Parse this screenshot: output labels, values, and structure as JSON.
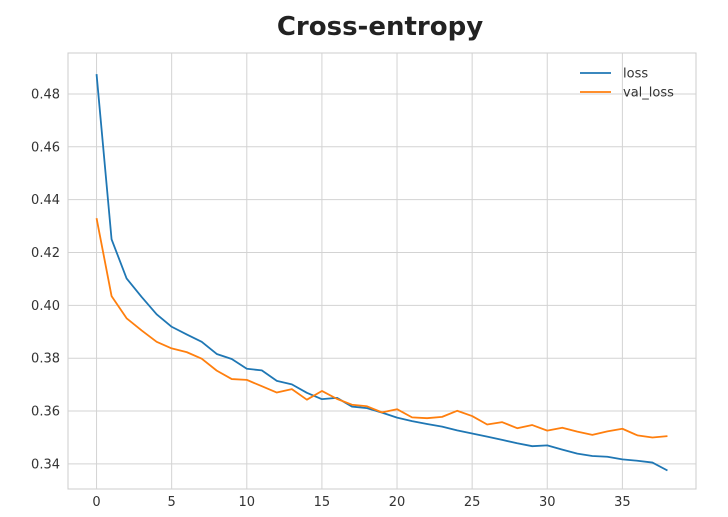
{
  "chart_data": {
    "type": "line",
    "title": "Cross-entropy",
    "xlabel": "",
    "ylabel": "",
    "xlim": [
      -1.9,
      39.9
    ],
    "ylim": [
      0.3305,
      0.4955
    ],
    "x_ticks": [
      0,
      5,
      10,
      15,
      20,
      25,
      30,
      35
    ],
    "y_ticks": [
      0.34,
      0.36,
      0.38,
      0.4,
      0.42,
      0.44,
      0.46,
      0.48
    ],
    "y_tick_labels": [
      "0.34",
      "0.36",
      "0.38",
      "0.40",
      "0.42",
      "0.44",
      "0.46",
      "0.48"
    ],
    "grid": true,
    "legend_position": "top-right",
    "x": [
      0,
      1,
      2,
      3,
      4,
      5,
      6,
      7,
      8,
      9,
      10,
      11,
      12,
      13,
      14,
      15,
      16,
      17,
      18,
      19,
      20,
      21,
      22,
      23,
      24,
      25,
      26,
      27,
      28,
      29,
      30,
      31,
      32,
      33,
      34,
      35,
      36,
      37,
      38
    ],
    "series": [
      {
        "name": "loss",
        "color": "#1f77b4",
        "values": [
          0.4875,
          0.425,
          0.4102,
          0.4032,
          0.3966,
          0.3919,
          0.389,
          0.3862,
          0.3816,
          0.3797,
          0.376,
          0.3754,
          0.3714,
          0.3701,
          0.3669,
          0.3645,
          0.365,
          0.3617,
          0.3611,
          0.3594,
          0.3575,
          0.3562,
          0.3551,
          0.3541,
          0.3527,
          0.3515,
          0.3503,
          0.3491,
          0.3478,
          0.3467,
          0.347,
          0.3454,
          0.3439,
          0.343,
          0.3427,
          0.3417,
          0.3412,
          0.3405,
          0.3375
        ]
      },
      {
        "name": "val_loss",
        "color": "#ff7f0e",
        "values": [
          0.433,
          0.4035,
          0.3951,
          0.3905,
          0.3862,
          0.3837,
          0.3823,
          0.3798,
          0.3753,
          0.3721,
          0.3718,
          0.3694,
          0.367,
          0.3683,
          0.3643,
          0.3676,
          0.3646,
          0.3624,
          0.3618,
          0.3595,
          0.3607,
          0.3576,
          0.3573,
          0.3578,
          0.3601,
          0.3581,
          0.3549,
          0.3558,
          0.3535,
          0.3547,
          0.3526,
          0.3537,
          0.3522,
          0.351,
          0.3523,
          0.3533,
          0.3508,
          0.35,
          0.3505
        ]
      }
    ]
  }
}
